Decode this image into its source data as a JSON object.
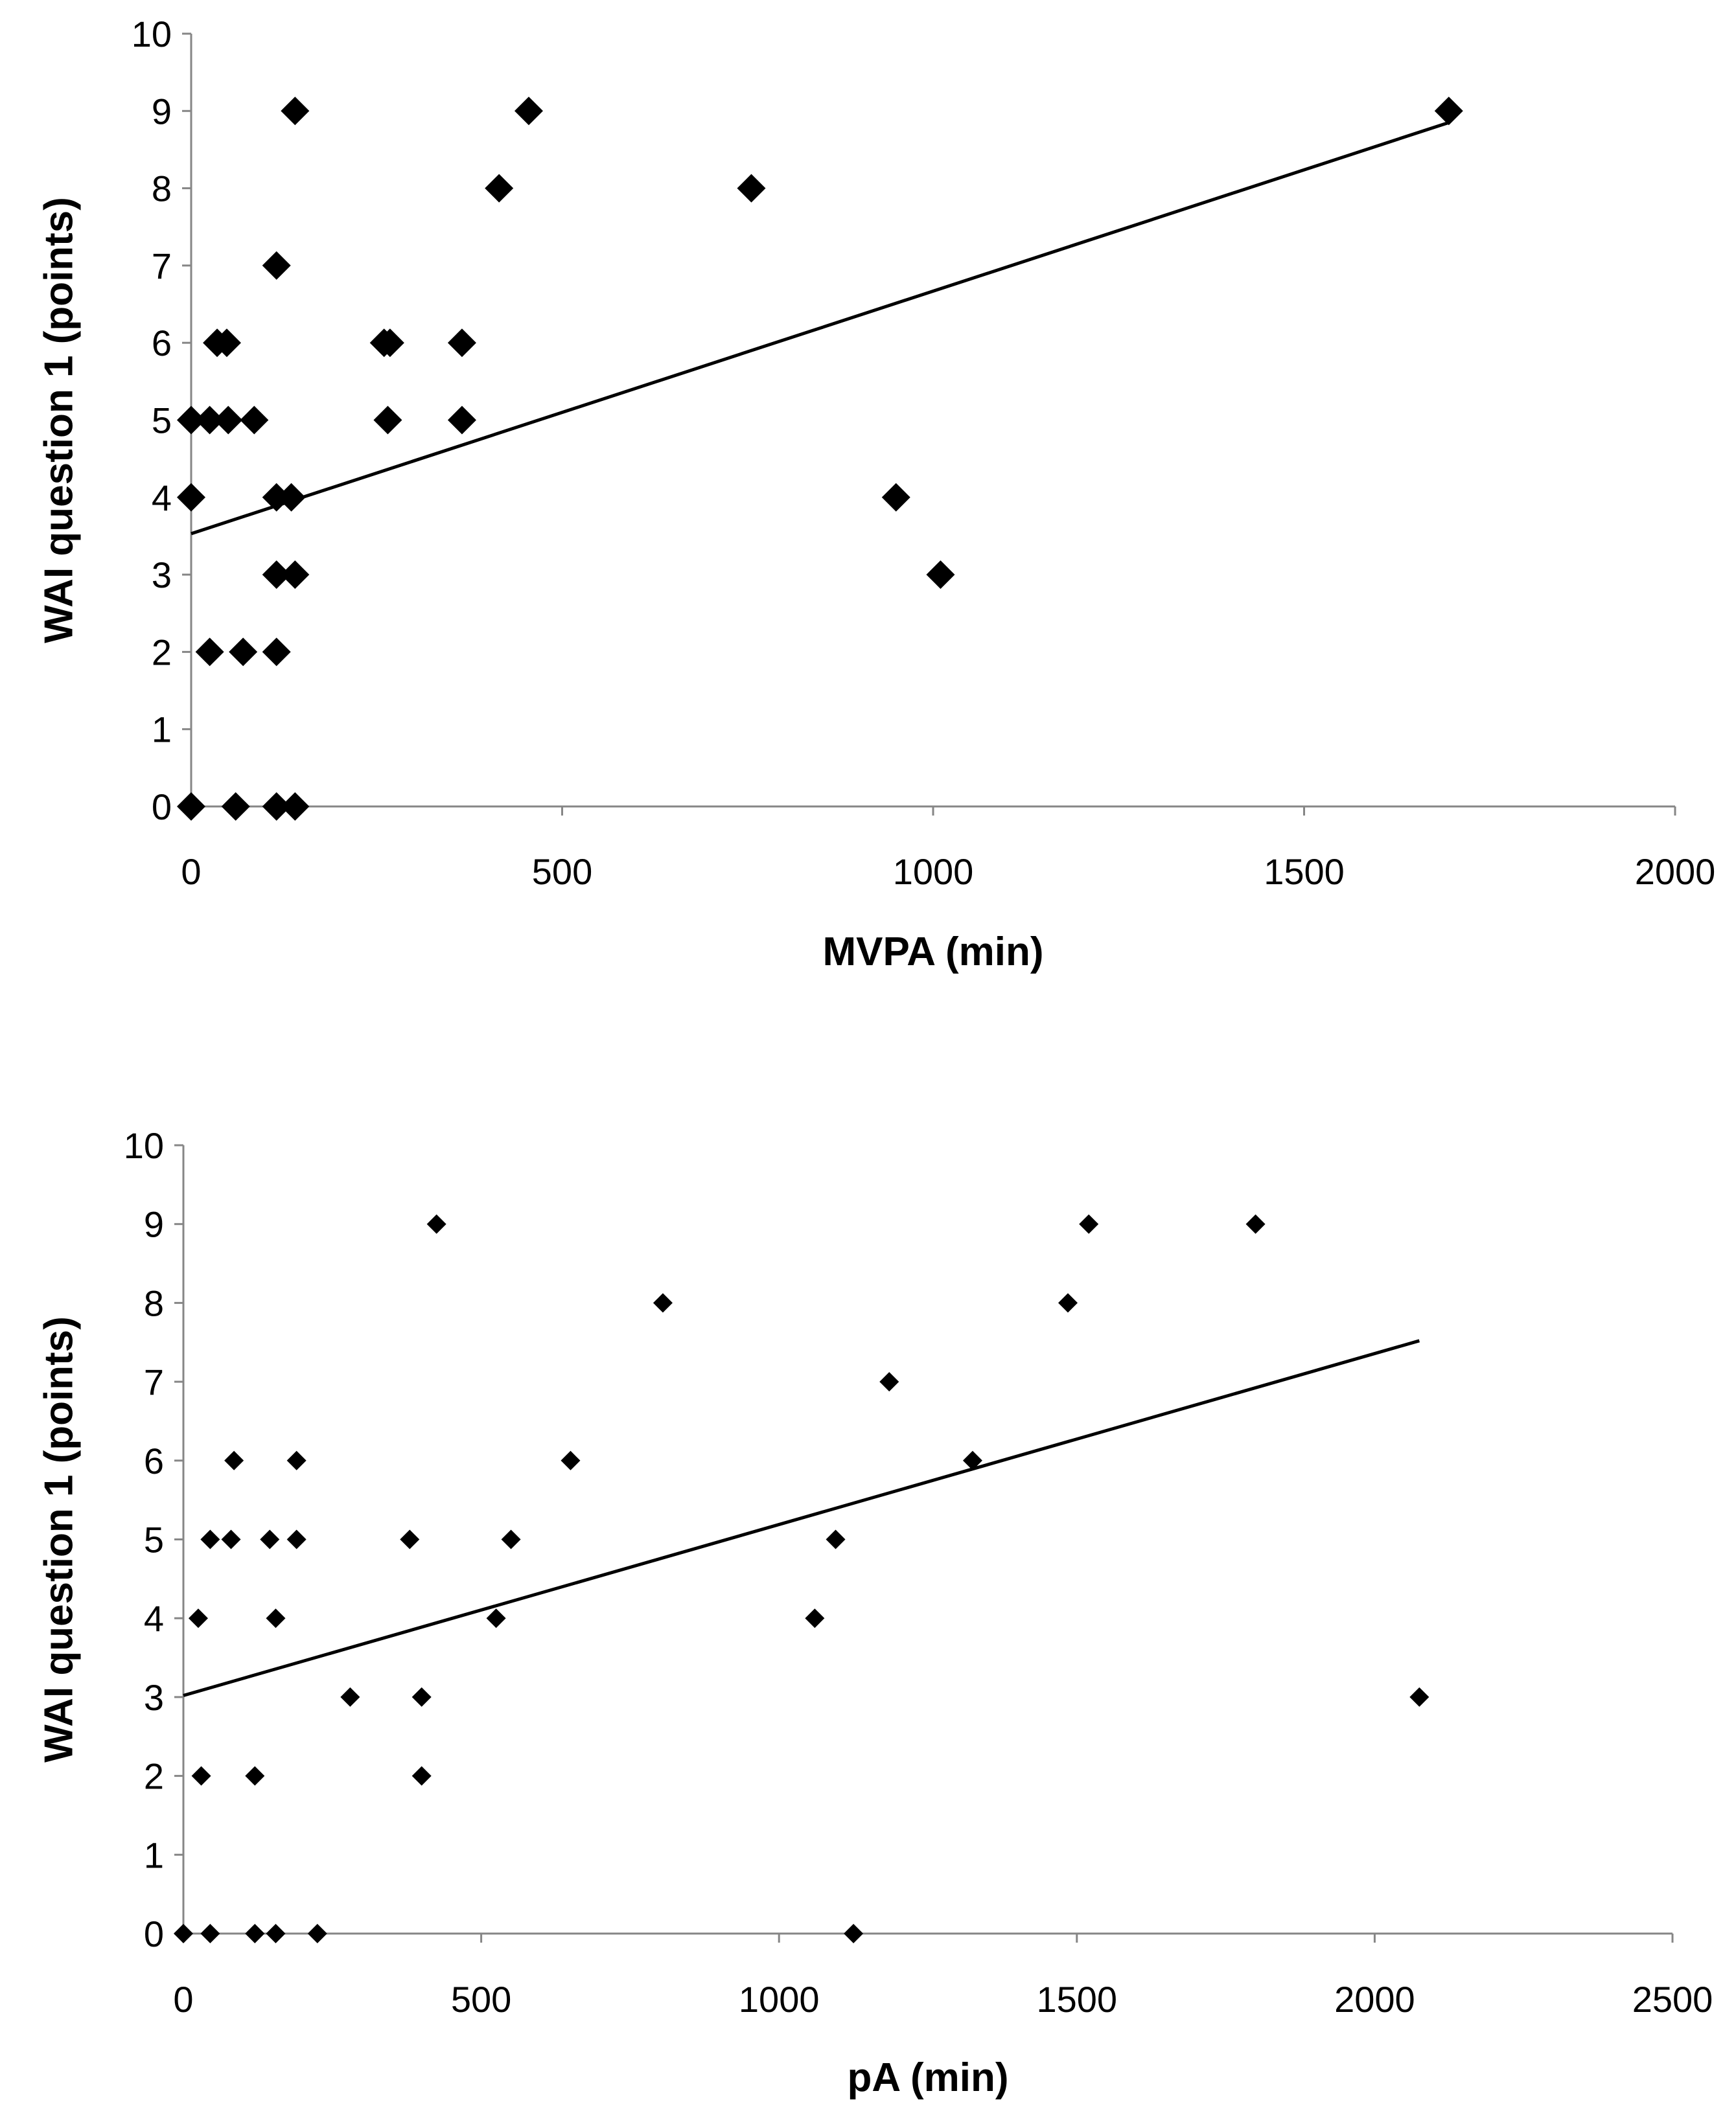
{
  "chart_data": [
    {
      "type": "scatter",
      "xlabel": "MVPA (min)",
      "ylabel": "WAI question 1 (points)",
      "xlim": [
        0,
        2000
      ],
      "ylim": [
        0,
        10
      ],
      "xticks": [
        0,
        500,
        1000,
        1500,
        2000
      ],
      "yticks": [
        0,
        1,
        2,
        3,
        4,
        5,
        6,
        7,
        8,
        9,
        10
      ],
      "grid": false,
      "marker_size": "large",
      "points": [
        {
          "x": 0,
          "y": 0
        },
        {
          "x": 60,
          "y": 0
        },
        {
          "x": 115,
          "y": 0
        },
        {
          "x": 140,
          "y": 0
        },
        {
          "x": 25,
          "y": 2
        },
        {
          "x": 70,
          "y": 2
        },
        {
          "x": 115,
          "y": 2
        },
        {
          "x": 115,
          "y": 3
        },
        {
          "x": 140,
          "y": 3
        },
        {
          "x": 1010,
          "y": 3
        },
        {
          "x": 0,
          "y": 4
        },
        {
          "x": 115,
          "y": 4
        },
        {
          "x": 135,
          "y": 4
        },
        {
          "x": 950,
          "y": 4
        },
        {
          "x": 0,
          "y": 5
        },
        {
          "x": 25,
          "y": 5
        },
        {
          "x": 50,
          "y": 5
        },
        {
          "x": 85,
          "y": 5
        },
        {
          "x": 265,
          "y": 5
        },
        {
          "x": 365,
          "y": 5
        },
        {
          "x": 35,
          "y": 6
        },
        {
          "x": 48,
          "y": 6
        },
        {
          "x": 260,
          "y": 6
        },
        {
          "x": 268,
          "y": 6
        },
        {
          "x": 365,
          "y": 6
        },
        {
          "x": 115,
          "y": 7
        },
        {
          "x": 415,
          "y": 8
        },
        {
          "x": 755,
          "y": 8
        },
        {
          "x": 140,
          "y": 9
        },
        {
          "x": 455,
          "y": 9
        },
        {
          "x": 1695,
          "y": 9
        }
      ],
      "trendline": {
        "x": [
          0,
          1695
        ],
        "y": [
          3.53,
          8.85
        ]
      }
    },
    {
      "type": "scatter",
      "xlabel": "pA (min)",
      "ylabel": "WAI question 1 (points)",
      "xlim": [
        0,
        2500
      ],
      "ylim": [
        0,
        10
      ],
      "xticks": [
        0,
        500,
        1000,
        1500,
        2000,
        2500
      ],
      "yticks": [
        0,
        1,
        2,
        3,
        4,
        5,
        6,
        7,
        8,
        9,
        10
      ],
      "grid": false,
      "marker_size": "small",
      "points": [
        {
          "x": 0,
          "y": 0
        },
        {
          "x": 45,
          "y": 0
        },
        {
          "x": 120,
          "y": 0
        },
        {
          "x": 155,
          "y": 0
        },
        {
          "x": 225,
          "y": 0
        },
        {
          "x": 1125,
          "y": 0
        },
        {
          "x": 30,
          "y": 2
        },
        {
          "x": 120,
          "y": 2
        },
        {
          "x": 400,
          "y": 2
        },
        {
          "x": 280,
          "y": 3
        },
        {
          "x": 400,
          "y": 3
        },
        {
          "x": 2075,
          "y": 3
        },
        {
          "x": 25,
          "y": 4
        },
        {
          "x": 155,
          "y": 4
        },
        {
          "x": 525,
          "y": 4
        },
        {
          "x": 1060,
          "y": 4
        },
        {
          "x": 45,
          "y": 5
        },
        {
          "x": 80,
          "y": 5
        },
        {
          "x": 145,
          "y": 5
        },
        {
          "x": 190,
          "y": 5
        },
        {
          "x": 380,
          "y": 5
        },
        {
          "x": 550,
          "y": 5
        },
        {
          "x": 1095,
          "y": 5
        },
        {
          "x": 85,
          "y": 6
        },
        {
          "x": 190,
          "y": 6
        },
        {
          "x": 650,
          "y": 6
        },
        {
          "x": 1325,
          "y": 6
        },
        {
          "x": 1185,
          "y": 7
        },
        {
          "x": 805,
          "y": 8
        },
        {
          "x": 1485,
          "y": 8
        },
        {
          "x": 425,
          "y": 9
        },
        {
          "x": 1520,
          "y": 9
        },
        {
          "x": 1800,
          "y": 9
        }
      ],
      "trendline": {
        "x": [
          0,
          2075
        ],
        "y": [
          3.02,
          7.52
        ]
      }
    }
  ]
}
